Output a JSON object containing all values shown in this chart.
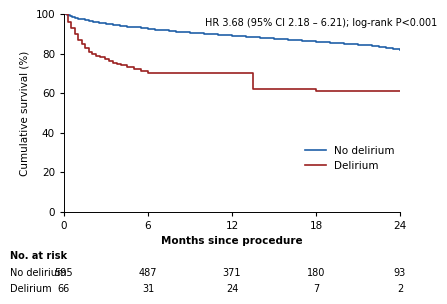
{
  "title_annotation": "HR 3.68 (95% CI 2.18 – 6.21); log-rank P<0.001",
  "xlabel": "Months since procedure",
  "ylabel": "Cumulative survival (%)",
  "xlim": [
    0,
    24
  ],
  "ylim": [
    0,
    100
  ],
  "xticks": [
    0,
    6,
    12,
    18,
    24
  ],
  "yticks": [
    0,
    20,
    40,
    60,
    80,
    100
  ],
  "no_delirium_color": "#2060a8",
  "delirium_color": "#9b2020",
  "no_delirium_x": [
    0,
    0.2,
    0.4,
    0.6,
    0.8,
    1.0,
    1.2,
    1.5,
    1.8,
    2.1,
    2.5,
    3.0,
    3.5,
    4.0,
    4.5,
    5.0,
    5.5,
    6.0,
    6.5,
    7.0,
    7.5,
    8.0,
    8.5,
    9.0,
    9.5,
    10.0,
    10.5,
    11.0,
    11.5,
    12.0,
    12.5,
    13.0,
    13.5,
    14.0,
    14.5,
    15.0,
    15.5,
    16.0,
    16.5,
    17.0,
    17.5,
    18.0,
    18.5,
    19.0,
    19.5,
    20.0,
    20.5,
    21.0,
    21.5,
    22.0,
    22.5,
    23.0,
    23.5,
    24.0
  ],
  "no_delirium_y": [
    100,
    99.5,
    99.0,
    98.5,
    98.0,
    97.5,
    97.2,
    96.8,
    96.4,
    96.0,
    95.5,
    95.0,
    94.5,
    94.0,
    93.5,
    93.2,
    92.8,
    92.5,
    92.0,
    91.7,
    91.4,
    91.1,
    90.8,
    90.5,
    90.3,
    90.1,
    89.8,
    89.5,
    89.2,
    89.0,
    88.7,
    88.5,
    88.2,
    87.9,
    87.7,
    87.4,
    87.2,
    87.0,
    86.7,
    86.5,
    86.2,
    86.0,
    85.8,
    85.5,
    85.2,
    85.0,
    84.7,
    84.4,
    84.1,
    83.8,
    83.5,
    83.0,
    82.5,
    82.0
  ],
  "delirium_x": [
    0,
    0.25,
    0.5,
    0.75,
    1.0,
    1.25,
    1.5,
    1.75,
    2.0,
    2.3,
    2.6,
    2.9,
    3.2,
    3.5,
    3.8,
    4.1,
    4.5,
    5.0,
    5.5,
    6.0,
    7.0,
    8.0,
    9.0,
    10.0,
    11.0,
    12.0,
    13.5,
    15.0,
    16.5,
    18.0,
    20.0,
    22.0,
    24.0
  ],
  "delirium_y": [
    100,
    96,
    93,
    90,
    87,
    85,
    83,
    81,
    80,
    79,
    78,
    77,
    76,
    75,
    74.5,
    74,
    73,
    72,
    71,
    70,
    70,
    70,
    70,
    70,
    70,
    70,
    62,
    62,
    62,
    61,
    61,
    61,
    61
  ],
  "legend_no_delirium": "No delirium",
  "legend_delirium": "Delirium",
  "at_risk_label": "No. at risk",
  "at_risk_no_delirium_label": "No delirium",
  "at_risk_delirium_label": "Delirium",
  "at_risk_months": [
    0,
    6,
    12,
    18,
    24
  ],
  "at_risk_no_delirium": [
    595,
    487,
    371,
    180,
    93
  ],
  "at_risk_delirium": [
    66,
    31,
    24,
    7,
    2
  ],
  "bg_color": "#ffffff"
}
